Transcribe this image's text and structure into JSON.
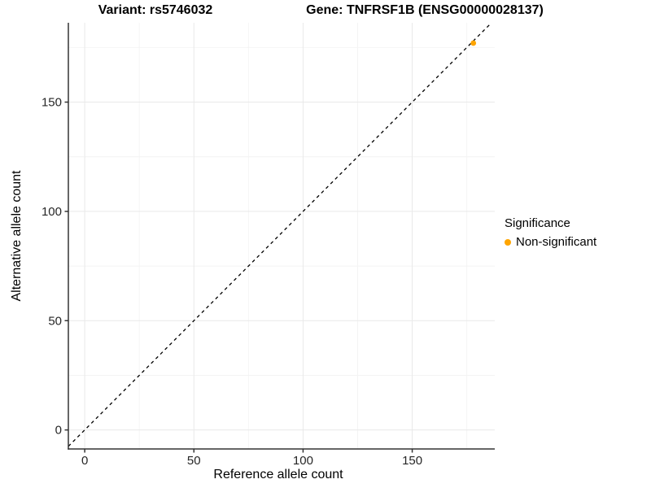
{
  "titles": {
    "variant": "Variant: rs5746032",
    "gene": "Gene: TNFRSF1B (ENSG00000028137)"
  },
  "legend": {
    "title": "Significance",
    "items": [
      {
        "label": "Non-significant",
        "color": "#FFA500"
      }
    ]
  },
  "colors": {
    "point": "#FFA500",
    "major_grid": "#e9e9e9",
    "minor_grid": "#f4f4f4",
    "axis_line": "#333333",
    "tick_label": "#262626",
    "identity_line": "#000000"
  },
  "chart_data": {
    "type": "scatter",
    "title": "Variant: rs5746032 | Gene: TNFRSF1B (ENSG00000028137)",
    "xlabel": "Reference allele count",
    "ylabel": "Alternative allele count",
    "xlim": [
      -7.5,
      187.8
    ],
    "ylim": [
      -8.7,
      186.3
    ],
    "x_ticks": [
      0,
      50,
      100,
      150
    ],
    "y_ticks": [
      0,
      50,
      100,
      150
    ],
    "x_minor_ticks": [
      25,
      75,
      125,
      175
    ],
    "y_minor_ticks": [
      25,
      75,
      125,
      175
    ],
    "grid": true,
    "legend_position": "right",
    "reference_line": {
      "slope": 1,
      "intercept": 0,
      "style": "dashed",
      "color": "#000000"
    },
    "series": [
      {
        "name": "Non-significant",
        "color": "#FFA500",
        "points": [
          {
            "x": 178,
            "y": 177
          }
        ]
      }
    ]
  }
}
